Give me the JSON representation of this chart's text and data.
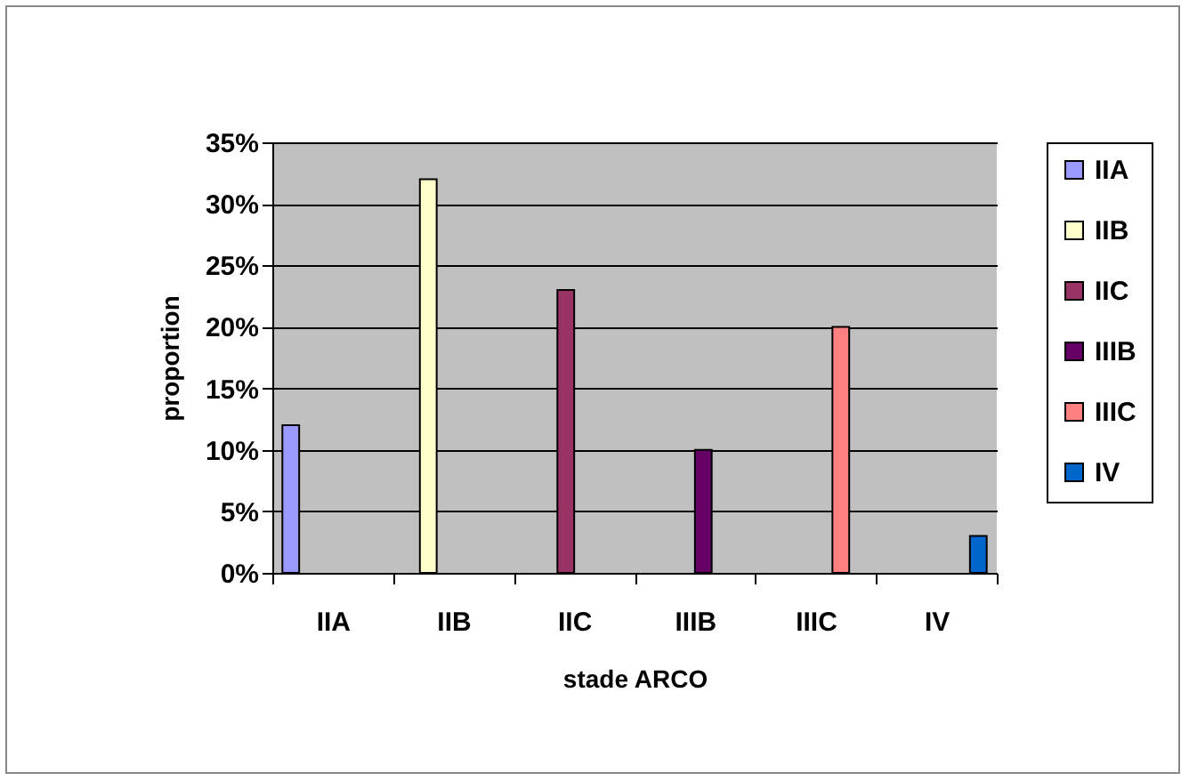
{
  "chart_data": {
    "type": "bar",
    "xlabel": "stade ARCO",
    "ylabel": "proportion",
    "categories": [
      "IIA",
      "IIB",
      "IIC",
      "IIIB",
      "IIIC",
      "IV"
    ],
    "series": [
      {
        "name": "IIA",
        "color": "#9999ff",
        "values": [
          12,
          null,
          null,
          null,
          null,
          null
        ]
      },
      {
        "name": "IIB",
        "color": "#ffffcc",
        "values": [
          null,
          32,
          null,
          null,
          null,
          null
        ]
      },
      {
        "name": "IIC",
        "color": "#993366",
        "values": [
          null,
          null,
          23,
          null,
          null,
          null
        ]
      },
      {
        "name": "IIIB",
        "color": "#660066",
        "values": [
          null,
          null,
          null,
          10,
          null,
          null
        ]
      },
      {
        "name": "IIIC",
        "color": "#ff8080",
        "values": [
          null,
          null,
          null,
          null,
          20,
          null
        ]
      },
      {
        "name": "IV",
        "color": "#0066cc",
        "values": [
          null,
          null,
          null,
          null,
          null,
          3
        ]
      }
    ],
    "ylim": [
      0,
      35
    ],
    "yticks": [
      {
        "value": 0,
        "label": "0%"
      },
      {
        "value": 5,
        "label": "5%"
      },
      {
        "value": 10,
        "label": "10%"
      },
      {
        "value": 15,
        "label": "15%"
      },
      {
        "value": 20,
        "label": "20%"
      },
      {
        "value": 25,
        "label": "25%"
      },
      {
        "value": 30,
        "label": "30%"
      },
      {
        "value": 35,
        "label": "35%"
      }
    ],
    "grid": "y",
    "legend": "right"
  }
}
